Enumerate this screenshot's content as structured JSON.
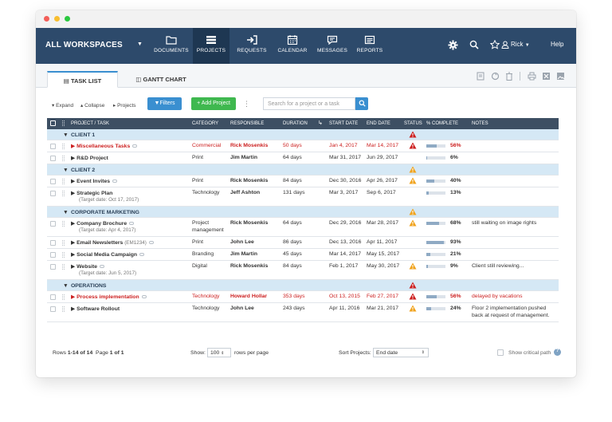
{
  "window_dots": [
    "#f35e58",
    "#f8be2f",
    "#2bc840"
  ],
  "topnav": {
    "workspace": "ALL WORKSPACES",
    "items": [
      {
        "label": "DOCUMENTS",
        "icon": "folder-icon"
      },
      {
        "label": "PROJECTS",
        "icon": "projects-icon",
        "active": true
      },
      {
        "label": "REQUESTS",
        "icon": "sign-in-icon"
      },
      {
        "label": "CALENDAR",
        "icon": "calendar-icon"
      },
      {
        "label": "MESSAGES",
        "icon": "chat-icon"
      },
      {
        "label": "REPORTS",
        "icon": "report-icon"
      }
    ],
    "user": "Rick",
    "help": "Help"
  },
  "tabs": [
    {
      "label": "TASK LIST",
      "icon": "list-icon",
      "active": true
    },
    {
      "label": "GANTT CHART",
      "icon": "gantt-icon"
    }
  ],
  "toolbar": {
    "expand": "Expand",
    "collapse": "Collapse",
    "projects": "Projects",
    "filters": "Filters",
    "add_project": "+ Add Project",
    "search_placeholder": "Search for a project or a task"
  },
  "columns": {
    "project": "PROJECT / TASK",
    "category": "CATEGORY",
    "responsible": "RESPONSIBLE",
    "duration": "DURATION",
    "start": "START DATE",
    "end": "END DATE",
    "status": "STATUS",
    "complete": "% COMPLETE",
    "notes": "NOTES"
  },
  "rows": [
    {
      "kind": "group",
      "name": "CLIENT 1",
      "status": "red"
    },
    {
      "kind": "task",
      "name": "Miscellaneous Tasks",
      "comment": true,
      "red": true,
      "category": "Commercial",
      "responsible": "Rick Mosenkis",
      "duration": "50 days",
      "start": "Jan 4, 2017",
      "end": "Mar 14, 2017",
      "status": "red",
      "pct": "56%",
      "pct_value": 56,
      "notes": ""
    },
    {
      "kind": "task",
      "name": "R&D Project",
      "category": "Print",
      "responsible": "Jim Martin",
      "duration": "64 days",
      "start": "Mar 31, 2017",
      "end": "Jun 29, 2017",
      "status": "",
      "pct": "6%",
      "pct_value": 6,
      "notes": ""
    },
    {
      "kind": "group",
      "name": "CLIENT 2",
      "status": "orange"
    },
    {
      "kind": "task",
      "name": "Event Invites",
      "comment": true,
      "category": "Print",
      "responsible": "Rick Mosenkis",
      "duration": "84 days",
      "start": "Dec 30, 2016",
      "end": "Apr 26, 2017",
      "status": "orange",
      "pct": "40%",
      "pct_value": 40,
      "notes": ""
    },
    {
      "kind": "task",
      "name": "Strategic Plan",
      "sub": "(Target date: Oct 17, 2017)",
      "category": "Technology",
      "responsible": "Jeff Ashton",
      "duration": "131 days",
      "start": "Mar 3, 2017",
      "end": "Sep 6, 2017",
      "status": "",
      "pct": "13%",
      "pct_value": 13,
      "notes": ""
    },
    {
      "kind": "group",
      "name": "CORPORATE MARKETING",
      "status": "orange"
    },
    {
      "kind": "task",
      "name": "Company Brochure",
      "comment": true,
      "sub": "(Target date: Apr 4, 2017)",
      "category": "Project",
      "category2": "management",
      "responsible": "Rick Mosenkis",
      "duration": "64 days",
      "start": "Dec 29, 2016",
      "end": "Mar 28, 2017",
      "status": "orange",
      "pct": "68%",
      "pct_value": 68,
      "notes": "still waiting on image rights"
    },
    {
      "kind": "task",
      "name": "Email Newsletters",
      "tag": "(EM1234)",
      "comment": true,
      "category": "Print",
      "responsible": "John Lee",
      "duration": "86 days",
      "start": "Dec 13, 2016",
      "end": "Apr 11, 2017",
      "status": "",
      "pct": "93%",
      "pct_value": 93,
      "notes": ""
    },
    {
      "kind": "task",
      "name": "Social Media Campaign",
      "comment": true,
      "category": "Branding",
      "responsible": "Jim Martin",
      "duration": "45 days",
      "start": "Mar 14, 2017",
      "end": "May 15, 2017",
      "status": "",
      "pct": "21%",
      "pct_value": 21,
      "notes": ""
    },
    {
      "kind": "task",
      "name": "Website",
      "comment": true,
      "sub": "(Target date: Jun 5, 2017)",
      "category": "Digital",
      "responsible": "Rick Mosenkis",
      "duration": "84 days",
      "start": "Feb 1, 2017",
      "end": "May 30, 2017",
      "status": "orange",
      "pct": "9%",
      "pct_value": 9,
      "notes": "Client still reviewing..."
    },
    {
      "kind": "group",
      "name": "OPERATIONS",
      "status": "red"
    },
    {
      "kind": "task",
      "name": "Process implementation",
      "comment": true,
      "red": true,
      "category": "Technology",
      "responsible": "Howard Hollar",
      "duration": "353 days",
      "start": "Oct 13, 2015",
      "end": "Feb 27, 2017",
      "status": "red",
      "pct": "56%",
      "pct_value": 56,
      "notes": "delayed by vacations",
      "notes_red": true
    },
    {
      "kind": "task",
      "name": "Software Rollout",
      "category": "Technology",
      "responsible": "John Lee",
      "duration": "243 days",
      "start": "Apr 11, 2016",
      "end": "Mar 21, 2017",
      "status": "orange",
      "pct": "24%",
      "pct_value": 24,
      "notes": "Floor 2 implementation pushed",
      "notes2": "back at request of management."
    }
  ],
  "footer": {
    "rows_label": "Rows",
    "rows_range": "1-14 of 14",
    "page_label": "Page",
    "page_value": "1 of 1",
    "show_label": "Show:",
    "show_value": "100",
    "per_page": "rows per page",
    "sort_label": "Sort Projects:",
    "sort_value": "End date",
    "critical_path": "Show critical path"
  },
  "colors": {
    "nav": "#2d4a6b",
    "accent": "#3a8fd0",
    "add": "#3fb84f",
    "red": "#cc1f1f",
    "orange": "#f0a21c",
    "group": "#d5e8f5"
  }
}
